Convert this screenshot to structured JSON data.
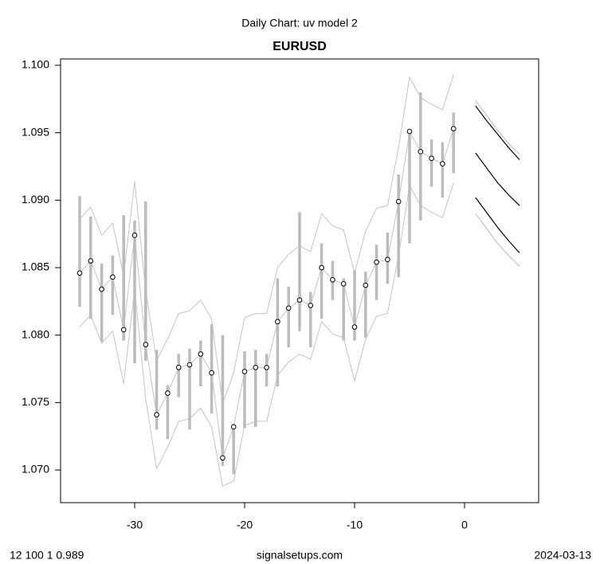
{
  "chart_data": {
    "type": "line",
    "title": "Daily Chart: uv model 2",
    "subtitle": "EURUSD",
    "x": [
      -35,
      -34,
      -33,
      -32,
      -31,
      -30,
      -29,
      -28,
      -27,
      -26,
      -25,
      -24,
      -23,
      -22,
      -21,
      -20,
      -19,
      -18,
      -17,
      -16,
      -15,
      -14,
      -13,
      -12,
      -11,
      -10,
      -9,
      -8,
      -7,
      -6,
      -5,
      -4,
      -3,
      -2,
      -1
    ],
    "close": [
      1.0846,
      1.0855,
      1.0834,
      1.0843,
      1.0804,
      1.0874,
      1.0793,
      1.0741,
      1.0757,
      1.0776,
      1.0778,
      1.0786,
      1.0772,
      1.0709,
      1.0732,
      1.0773,
      1.0776,
      1.0776,
      1.081,
      1.082,
      1.0826,
      1.0822,
      1.085,
      1.0841,
      1.0838,
      1.0806,
      1.0837,
      1.0854,
      1.0856,
      1.0899,
      1.0951,
      1.0936,
      1.0931,
      1.0927,
      1.0953
    ],
    "high": [
      1.0903,
      1.0888,
      1.0853,
      1.0859,
      1.0889,
      1.0885,
      1.0899,
      1.0789,
      1.0763,
      1.0786,
      1.079,
      1.0796,
      1.0808,
      1.08,
      1.0734,
      1.0788,
      1.0789,
      1.0786,
      1.0842,
      1.0836,
      1.0891,
      1.0832,
      1.0868,
      1.0855,
      1.0842,
      1.0848,
      1.0847,
      1.0867,
      1.0876,
      1.0919,
      1.0951,
      1.098,
      1.0945,
      1.0943,
      1.0965
    ],
    "low": [
      1.0821,
      1.0812,
      1.0795,
      1.0815,
      1.0796,
      1.0779,
      1.0781,
      1.073,
      1.0723,
      1.0754,
      1.073,
      1.0762,
      1.0742,
      1.0703,
      1.0697,
      1.0731,
      1.0732,
      1.0762,
      1.0762,
      1.0791,
      1.0803,
      1.0791,
      1.0812,
      1.0826,
      1.0796,
      1.0796,
      1.0798,
      1.0826,
      1.0838,
      1.0843,
      1.0868,
      1.0885,
      1.091,
      1.0902,
      1.092
    ],
    "upper": [
      1.0886,
      1.0895,
      1.0874,
      1.0883,
      1.0844,
      1.0914,
      1.0833,
      1.0781,
      1.0797,
      1.0816,
      1.0818,
      1.0826,
      1.0812,
      1.0749,
      1.0772,
      1.0813,
      1.0816,
      1.0816,
      1.085,
      1.086,
      1.0866,
      1.0862,
      1.089,
      1.0881,
      1.0878,
      1.0846,
      1.0877,
      1.0894,
      1.0896,
      1.0939,
      1.0991,
      1.0976,
      1.0971,
      1.0967,
      1.0993
    ],
    "lower": [
      1.0806,
      1.0815,
      1.0794,
      1.0803,
      1.0764,
      1.0834,
      1.0753,
      1.0701,
      1.0717,
      1.0736,
      1.0738,
      1.0746,
      1.0732,
      1.0688,
      1.0692,
      1.0733,
      1.0736,
      1.0736,
      1.077,
      1.078,
      1.0786,
      1.0782,
      1.081,
      1.0801,
      1.0798,
      1.0766,
      1.0797,
      1.0814,
      1.0816,
      1.0859,
      1.0911,
      1.0896,
      1.0891,
      1.0887,
      1.0913
    ],
    "bar_color": "#bbbbbb",
    "band_color": "#c4c4c4",
    "forecast": {
      "x": [
        1,
        2,
        3,
        4,
        5
      ],
      "series": [
        {
          "color": "#000000",
          "values": [
            1.097,
            1.0959,
            1.0949,
            1.0939,
            1.093
          ]
        },
        {
          "color": "#000000",
          "values": [
            1.0935,
            1.0924,
            1.0913,
            1.0904,
            1.0896
          ]
        },
        {
          "color": "#000000",
          "values": [
            1.0902,
            1.0891,
            1.088,
            1.087,
            1.0861
          ]
        },
        {
          "color": "#c4c4c4",
          "values": [
            1.0974,
            1.0963,
            1.0952,
            1.0942,
            1.0934
          ]
        },
        {
          "color": "#c4c4c4",
          "values": [
            1.089,
            1.0879,
            1.0868,
            1.0859,
            1.0851
          ]
        }
      ]
    },
    "xlim": [
      -36.74,
      6.74
    ],
    "ylim": [
      1.06758,
      1.10047
    ],
    "xticks": [
      -30,
      -20,
      -10,
      0
    ],
    "yticks": [
      {
        "value": 1.07,
        "label": "1.070"
      },
      {
        "value": 1.075,
        "label": "1.075"
      },
      {
        "value": 1.08,
        "label": "1.080"
      },
      {
        "value": 1.085,
        "label": "1.085"
      },
      {
        "value": 1.09,
        "label": "1.090"
      },
      {
        "value": 1.095,
        "label": "1.095"
      },
      {
        "value": 1.1,
        "label": "1.100"
      }
    ],
    "footer": {
      "left": "12 100 1 0.989",
      "center": "signalsetups.com",
      "right": "2024-03-13"
    }
  }
}
